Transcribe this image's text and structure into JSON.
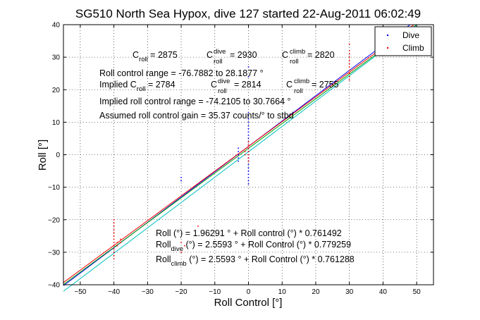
{
  "chart_data": {
    "type": "scatter",
    "title": "SG510 North Sea Hypox, dive 127 started 22-Aug-2011 06:02:49",
    "xlabel": "Roll Control [°]",
    "ylabel": "Roll [°]",
    "xlim": [
      -55,
      55
    ],
    "ylim": [
      -40,
      40
    ],
    "xticks": [
      -50,
      -40,
      -30,
      -20,
      -10,
      0,
      10,
      20,
      30,
      40,
      50
    ],
    "yticks": [
      -40,
      -30,
      -20,
      -10,
      0,
      10,
      20,
      30,
      40
    ],
    "grid": true,
    "legend": {
      "position": "top-right",
      "entries": [
        "Dive",
        "Climb"
      ]
    },
    "series": [
      {
        "name": "Dive",
        "color": "#0000ff",
        "points": [
          [
            0,
            13
          ],
          [
            0,
            12
          ],
          [
            0,
            11
          ],
          [
            0,
            10
          ],
          [
            0,
            9
          ],
          [
            0,
            8
          ],
          [
            0,
            7
          ],
          [
            0,
            6
          ],
          [
            0,
            5
          ],
          [
            0,
            4
          ],
          [
            0,
            3
          ],
          [
            0,
            2
          ],
          [
            0,
            1
          ],
          [
            0,
            0
          ],
          [
            0,
            -1
          ],
          [
            0,
            -2
          ],
          [
            0,
            -3
          ],
          [
            0,
            -4
          ],
          [
            0,
            -5
          ],
          [
            0,
            -6
          ],
          [
            0,
            -7
          ],
          [
            0,
            -8
          ],
          [
            0,
            -9
          ],
          [
            0,
            27
          ],
          [
            0,
            24
          ],
          [
            -3,
            -2
          ],
          [
            -3,
            -1
          ],
          [
            -3,
            0
          ],
          [
            -3,
            1
          ],
          [
            -3,
            2
          ],
          [
            -40,
            -28
          ],
          [
            -40,
            -29
          ],
          [
            -40,
            -30
          ],
          [
            -20,
            -7
          ],
          [
            -20,
            -8
          ]
        ]
      },
      {
        "name": "Climb",
        "color": "#ff0000",
        "points": [
          [
            0,
            -1
          ],
          [
            0,
            0
          ],
          [
            0,
            1
          ],
          [
            0,
            2
          ],
          [
            0,
            3
          ],
          [
            0,
            4
          ],
          [
            0,
            -2
          ],
          [
            -1,
            0
          ],
          [
            -1,
            1
          ],
          [
            30,
            23
          ],
          [
            30,
            24
          ],
          [
            30,
            25
          ],
          [
            30,
            26
          ],
          [
            30,
            27
          ],
          [
            30,
            28
          ],
          [
            30,
            29
          ],
          [
            30,
            30
          ],
          [
            30,
            31
          ],
          [
            30,
            32
          ],
          [
            30,
            34
          ],
          [
            -40,
            -20
          ],
          [
            -40,
            -21
          ],
          [
            -40,
            -22
          ],
          [
            -40,
            -23
          ],
          [
            -40,
            -24
          ],
          [
            -40,
            -25
          ],
          [
            -40,
            -26
          ],
          [
            -40,
            -27
          ],
          [
            -40,
            -28
          ],
          [
            -40,
            -29
          ],
          [
            -40,
            -30
          ],
          [
            -40,
            -31
          ],
          [
            -38,
            -26
          ],
          [
            -38,
            -27
          ],
          [
            -39,
            -27
          ],
          [
            -39,
            -28
          ],
          [
            -40,
            -32
          ],
          [
            -20,
            -27
          ],
          [
            -20,
            -30
          ],
          [
            -19,
            -28
          ],
          [
            -15,
            -22
          ]
        ]
      }
    ],
    "fit_lines": [
      {
        "color": "#0000ff",
        "slope": 0.779259,
        "intercept": 2.5593
      },
      {
        "color": "#00a000",
        "slope": 0.761492,
        "intercept": 1.96291
      },
      {
        "color": "#ff0000",
        "slope": 0.761288,
        "intercept": 2.5593
      },
      {
        "color": "#00bfbf",
        "slope": 0.78,
        "intercept": 0.9
      }
    ],
    "annotations": {
      "c_roll_label": "C",
      "c_roll_sub": "roll",
      "c_roll_value": " = 2875",
      "c_dive_label": "C",
      "c_dive_sup": "dive",
      "c_dive_sub": "roll",
      "c_dive_value": " = 2930",
      "c_climb_label": "C",
      "c_climb_sup": "climb",
      "c_climb_sub": "roll",
      "c_climb_value": " = 2820",
      "range_line": "Roll control range = -76.7882 to 28.1877 °",
      "implied_prefix": "Implied C",
      "implied_sub": "roll",
      "implied_value": " = 2784",
      "implied_dive_label": "C",
      "implied_dive_sup": "dive",
      "implied_dive_sub": "roll",
      "implied_dive_value": " = 2814",
      "implied_climb_label": "C",
      "implied_climb_sup": "climb",
      "implied_climb_sub": "roll",
      "implied_climb_value": " = 2755",
      "implied_range_line": "Implied roll control range = -74.2105 to 30.7664 °",
      "gain_line": "Assumed roll control gain = 35.37 counts/° to stbd",
      "fit_all": "Roll (°) = 1.96291 ° + Roll control (°) * 0.761492",
      "fit_dive_prefix": "Roll",
      "fit_dive_sub": "dive",
      "fit_dive_rest": " (°) = 2.5593 ° + Roll Control (°) * 0.779259",
      "fit_climb_prefix": "Roll",
      "fit_climb_sub": "climb",
      "fit_climb_rest": " (°) = 2.5593 ° + Roll Control (°) * 0.761288"
    }
  }
}
